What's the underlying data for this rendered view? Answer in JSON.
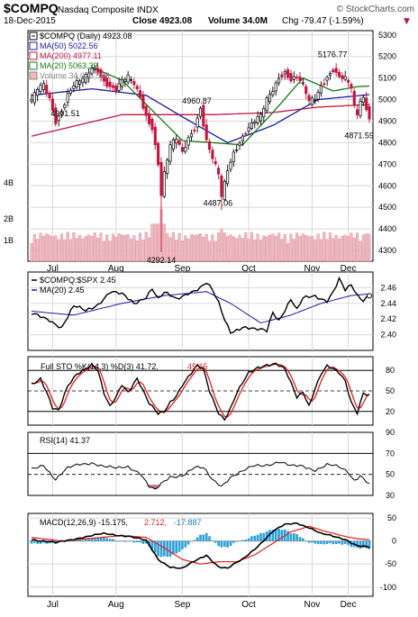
{
  "header": {
    "symbol": "$COMPQ",
    "name": "Nasdaq Composite INDX",
    "brand": "© StockCharts.com",
    "date": "18-Dec-2015",
    "close": "Close 4923.08",
    "volume": "Volume 34.0M",
    "chg": "Chg -79.47 (-1.59%)",
    "chg_arrow": "▼"
  },
  "colors": {
    "price": "#000000",
    "ma50": "#1a1aa6",
    "ma200": "#c4143c",
    "ma20": "#157a15",
    "volume": "#f2b8c0",
    "volume_edge": "#c97f8a",
    "hist": "#2a9fd8",
    "red": "#e0201c"
  },
  "chart_data": [
    {
      "type": "candlestick",
      "title": "$COMPQ (Daily) 4923.08",
      "ylim": [
        4250,
        5320
      ],
      "yticks": [
        4300,
        4400,
        4500,
        4600,
        4700,
        4800,
        4900,
        5000,
        5100,
        5200,
        5300
      ],
      "x_ticks": [
        "Jul",
        "Aug",
        "Sep",
        "Oct",
        "Nov",
        "Dec"
      ],
      "legend": [
        "$COMPQ (Daily) 4923.08",
        "MA(50) 5022.56",
        "MA(200) 4977.11",
        "MA(20) 5063.39",
        "Volume 34,033,568"
      ],
      "volume_ticks": [
        "4B",
        "2B",
        "1B"
      ],
      "annotations": [
        {
          "text": "4901.51",
          "value": 4901.51
        },
        {
          "text": "4960.87",
          "value": 4960.87
        },
        {
          "text": "4292.14",
          "value": 4292.14
        },
        {
          "text": "4487.06",
          "value": 4487.06
        },
        {
          "text": "5176.77",
          "value": 5176.77
        },
        {
          "text": "4871.59",
          "value": 4871.59
        }
      ],
      "anchors": [
        [
          0,
          4990
        ],
        [
          2,
          5045
        ],
        [
          4,
          5070
        ],
        [
          6,
          5010
        ],
        [
          8,
          4905
        ],
        [
          10,
          4950
        ],
        [
          12,
          5020
        ],
        [
          14,
          5060
        ],
        [
          16,
          5080
        ],
        [
          18,
          5105
        ],
        [
          20,
          5150
        ],
        [
          22,
          5140
        ],
        [
          24,
          5090
        ],
        [
          26,
          5060
        ],
        [
          28,
          5040
        ],
        [
          30,
          5080
        ],
        [
          32,
          5100
        ],
        [
          34,
          5075
        ],
        [
          36,
          5020
        ],
        [
          38,
          4930
        ],
        [
          40,
          4870
        ],
        [
          42,
          4700
        ],
        [
          43,
          4550
        ],
        [
          44,
          4650
        ],
        [
          46,
          4780
        ],
        [
          48,
          4820
        ],
        [
          50,
          4760
        ],
        [
          52,
          4830
        ],
        [
          54,
          4870
        ],
        [
          56,
          4960
        ],
        [
          58,
          4800
        ],
        [
          60,
          4720
        ],
        [
          62,
          4650
        ],
        [
          63,
          4550
        ],
        [
          65,
          4680
        ],
        [
          67,
          4760
        ],
        [
          70,
          4830
        ],
        [
          73,
          4880
        ],
        [
          76,
          4920
        ],
        [
          78,
          5000
        ],
        [
          80,
          5050
        ],
        [
          82,
          5110
        ],
        [
          84,
          5130
        ],
        [
          86,
          5090
        ],
        [
          88,
          5100
        ],
        [
          90,
          5060
        ],
        [
          92,
          4990
        ],
        [
          94,
          5010
        ],
        [
          96,
          5070
        ],
        [
          98,
          5110
        ],
        [
          100,
          5140
        ],
        [
          102,
          5100
        ],
        [
          104,
          5090
        ],
        [
          106,
          5050
        ],
        [
          107,
          4960
        ],
        [
          108,
          4930
        ],
        [
          109,
          5000
        ],
        [
          110,
          5010
        ],
        [
          112,
          4923
        ]
      ],
      "ma50_anchors": [
        [
          0,
          5020
        ],
        [
          20,
          5050
        ],
        [
          38,
          5020
        ],
        [
          50,
          4920
        ],
        [
          65,
          4800
        ],
        [
          80,
          4880
        ],
        [
          95,
          5000
        ],
        [
          112,
          5023
        ]
      ],
      "ma200_anchors": [
        [
          0,
          4830
        ],
        [
          30,
          4930
        ],
        [
          60,
          4930
        ],
        [
          80,
          4940
        ],
        [
          95,
          4965
        ],
        [
          112,
          4977
        ]
      ],
      "ma20_anchors": [
        [
          20,
          5150
        ],
        [
          30,
          5090
        ],
        [
          40,
          4950
        ],
        [
          50,
          4810
        ],
        [
          60,
          4800
        ],
        [
          70,
          4790
        ],
        [
          80,
          4940
        ],
        [
          90,
          5100
        ],
        [
          100,
          5040
        ],
        [
          108,
          5060
        ],
        [
          112,
          5063
        ]
      ]
    },
    {
      "type": "line",
      "title": "$COMPQ:$SPX 2.45",
      "series_names": [
        "$COMPQ:$SPX 2.45",
        "MA(20) 2.45"
      ],
      "ylim": [
        2.38,
        2.48
      ],
      "yticks": [
        2.4,
        2.42,
        2.44,
        2.46
      ],
      "anchors": [
        [
          0,
          2.425
        ],
        [
          6,
          2.42
        ],
        [
          10,
          2.41
        ],
        [
          14,
          2.435
        ],
        [
          18,
          2.43
        ],
        [
          22,
          2.44
        ],
        [
          26,
          2.455
        ],
        [
          30,
          2.45
        ],
        [
          34,
          2.44
        ],
        [
          38,
          2.45
        ],
        [
          40,
          2.46
        ],
        [
          42,
          2.445
        ],
        [
          44,
          2.452
        ],
        [
          48,
          2.445
        ],
        [
          52,
          2.455
        ],
        [
          56,
          2.46
        ],
        [
          58,
          2.465
        ],
        [
          60,
          2.455
        ],
        [
          62,
          2.44
        ],
        [
          64,
          2.42
        ],
        [
          66,
          2.405
        ],
        [
          70,
          2.41
        ],
        [
          74,
          2.405
        ],
        [
          78,
          2.405
        ],
        [
          80,
          2.43
        ],
        [
          82,
          2.42
        ],
        [
          86,
          2.445
        ],
        [
          88,
          2.43
        ],
        [
          90,
          2.445
        ],
        [
          94,
          2.45
        ],
        [
          98,
          2.445
        ],
        [
          100,
          2.455
        ],
        [
          102,
          2.47
        ],
        [
          104,
          2.455
        ],
        [
          106,
          2.462
        ],
        [
          108,
          2.45
        ],
        [
          110,
          2.445
        ],
        [
          112,
          2.453
        ]
      ],
      "ma_anchors": [
        [
          0,
          2.43
        ],
        [
          14,
          2.425
        ],
        [
          30,
          2.44
        ],
        [
          44,
          2.45
        ],
        [
          58,
          2.455
        ],
        [
          66,
          2.44
        ],
        [
          76,
          2.415
        ],
        [
          86,
          2.425
        ],
        [
          96,
          2.44
        ],
        [
          106,
          2.45
        ],
        [
          112,
          2.452
        ]
      ]
    },
    {
      "type": "line",
      "title": "Full STO %K(14,3) %D(3) 41.72, 45.15",
      "label_k": "Full STO %K(14,3) %D(3) 41.72,",
      "label_d": "45.15",
      "ylim": [
        0,
        100
      ],
      "yticks": [
        20,
        50,
        80
      ],
      "anchors": [
        [
          0,
          60
        ],
        [
          3,
          70
        ],
        [
          5,
          50
        ],
        [
          7,
          25
        ],
        [
          9,
          20
        ],
        [
          12,
          55
        ],
        [
          15,
          75
        ],
        [
          18,
          85
        ],
        [
          20,
          90
        ],
        [
          22,
          80
        ],
        [
          24,
          45
        ],
        [
          26,
          25
        ],
        [
          28,
          40
        ],
        [
          30,
          60
        ],
        [
          32,
          50
        ],
        [
          35,
          70
        ],
        [
          37,
          50
        ],
        [
          39,
          30
        ],
        [
          42,
          15
        ],
        [
          44,
          20
        ],
        [
          46,
          35
        ],
        [
          48,
          45
        ],
        [
          50,
          60
        ],
        [
          52,
          70
        ],
        [
          55,
          85
        ],
        [
          57,
          80
        ],
        [
          59,
          50
        ],
        [
          62,
          20
        ],
        [
          64,
          10
        ],
        [
          66,
          25
        ],
        [
          68,
          45
        ],
        [
          72,
          75
        ],
        [
          75,
          85
        ],
        [
          78,
          90
        ],
        [
          81,
          90
        ],
        [
          84,
          80
        ],
        [
          86,
          60
        ],
        [
          88,
          40
        ],
        [
          90,
          50
        ],
        [
          92,
          30
        ],
        [
          94,
          55
        ],
        [
          96,
          75
        ],
        [
          98,
          85
        ],
        [
          100,
          80
        ],
        [
          102,
          75
        ],
        [
          104,
          65
        ],
        [
          106,
          35
        ],
        [
          108,
          20
        ],
        [
          110,
          48
        ],
        [
          112,
          42
        ]
      ]
    },
    {
      "type": "line",
      "title": "RSI(14) 41.37",
      "ylim": [
        30,
        90
      ],
      "yticks": [
        30,
        50,
        70,
        90
      ],
      "anchors": [
        [
          0,
          55
        ],
        [
          4,
          60
        ],
        [
          8,
          45
        ],
        [
          12,
          55
        ],
        [
          16,
          60
        ],
        [
          20,
          62
        ],
        [
          24,
          57
        ],
        [
          28,
          55
        ],
        [
          32,
          58
        ],
        [
          36,
          52
        ],
        [
          39,
          38
        ],
        [
          41,
          34
        ],
        [
          43,
          40
        ],
        [
          46,
          48
        ],
        [
          50,
          50
        ],
        [
          54,
          56
        ],
        [
          57,
          55
        ],
        [
          60,
          45
        ],
        [
          63,
          40
        ],
        [
          66,
          48
        ],
        [
          70,
          52
        ],
        [
          74,
          58
        ],
        [
          78,
          60
        ],
        [
          82,
          62
        ],
        [
          86,
          57
        ],
        [
          90,
          58
        ],
        [
          94,
          55
        ],
        [
          98,
          59
        ],
        [
          102,
          56
        ],
        [
          105,
          52
        ],
        [
          107,
          45
        ],
        [
          109,
          50
        ],
        [
          112,
          41
        ]
      ]
    },
    {
      "type": "line",
      "title": "MACD(12,26,9) -15.175, 2.712, -17.887",
      "label_macd": "MACD(12,26,9) -15.175,",
      "label_signal": "2.712,",
      "label_hist": "-17.887",
      "ylim": [
        -120,
        60
      ],
      "yticks": [
        -100,
        -50,
        0,
        50
      ],
      "macd_anchors": [
        [
          0,
          5
        ],
        [
          8,
          -5
        ],
        [
          16,
          8
        ],
        [
          24,
          15
        ],
        [
          32,
          12
        ],
        [
          38,
          0
        ],
        [
          42,
          -40
        ],
        [
          46,
          -55
        ],
        [
          50,
          -60
        ],
        [
          54,
          -45
        ],
        [
          58,
          -30
        ],
        [
          62,
          -55
        ],
        [
          65,
          -60
        ],
        [
          70,
          -40
        ],
        [
          75,
          -10
        ],
        [
          80,
          20
        ],
        [
          84,
          35
        ],
        [
          88,
          40
        ],
        [
          92,
          30
        ],
        [
          96,
          15
        ],
        [
          100,
          10
        ],
        [
          104,
          5
        ],
        [
          108,
          -10
        ],
        [
          112,
          -15
        ]
      ],
      "signal_anchors": [
        [
          0,
          8
        ],
        [
          10,
          0
        ],
        [
          20,
          6
        ],
        [
          30,
          12
        ],
        [
          38,
          8
        ],
        [
          44,
          -15
        ],
        [
          50,
          -40
        ],
        [
          56,
          -50
        ],
        [
          62,
          -45
        ],
        [
          68,
          -45
        ],
        [
          74,
          -30
        ],
        [
          80,
          -5
        ],
        [
          86,
          20
        ],
        [
          92,
          32
        ],
        [
          98,
          20
        ],
        [
          104,
          10
        ],
        [
          108,
          5
        ],
        [
          112,
          3
        ]
      ]
    }
  ]
}
